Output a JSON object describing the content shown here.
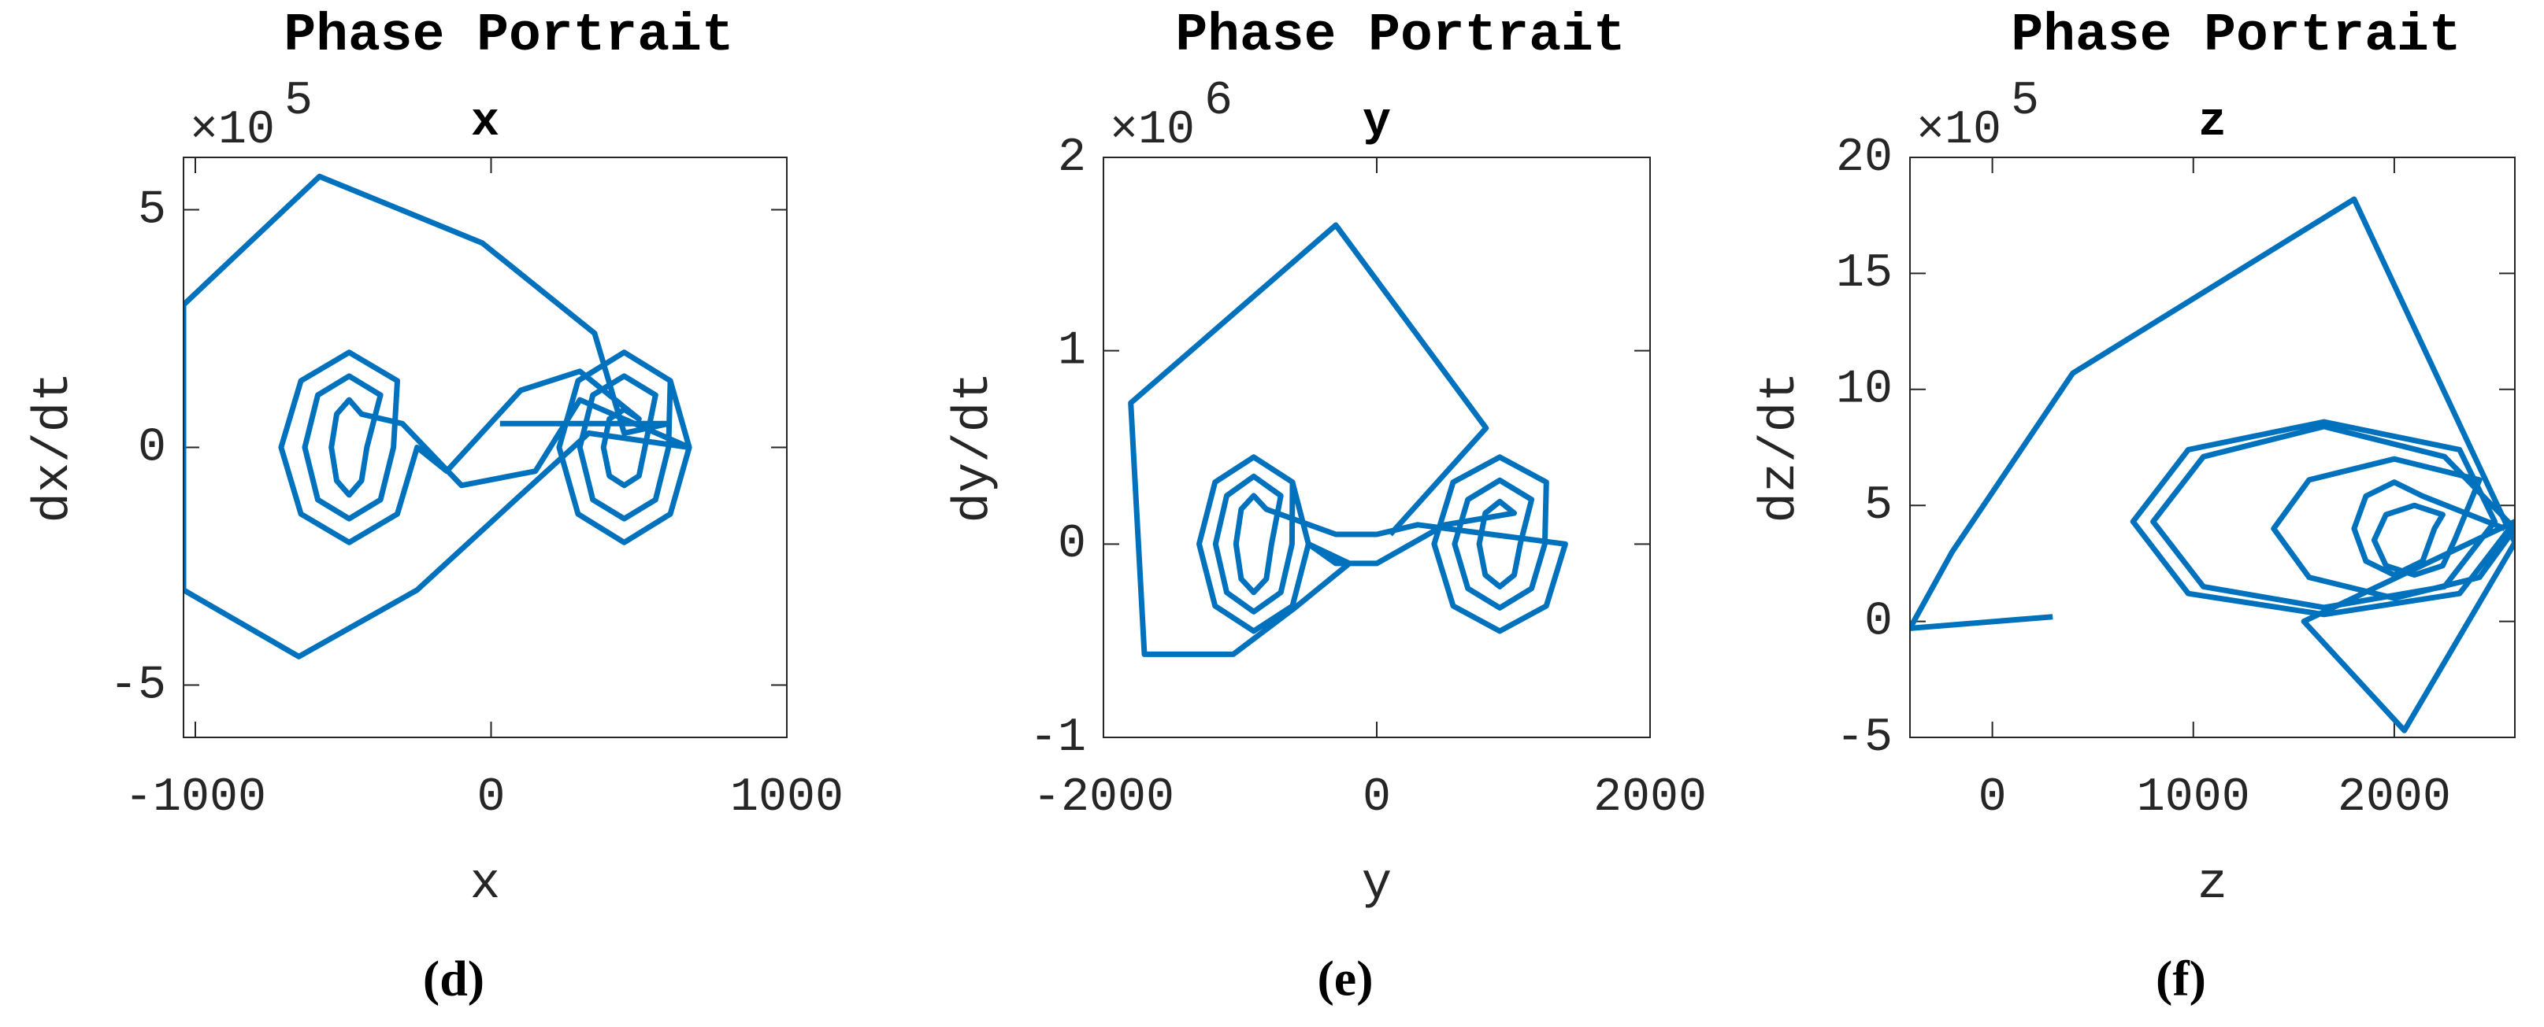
{
  "chart_data": [
    {
      "type": "line",
      "title": "Phase Portrait",
      "subtitle": "x",
      "xlabel": "x",
      "ylabel": "dx/dt",
      "y_scale_base": "×10",
      "y_scale_exponent": "5",
      "caption": "(d)",
      "color": "#0072BD",
      "xlim": [
        -1040,
        1000
      ],
      "ylim": [
        -6.1,
        6.1
      ],
      "xticks": [
        -1000,
        0,
        1000
      ],
      "yticks": [
        -5,
        0,
        5
      ],
      "x": [
        30,
        600,
        450,
        350,
        -30,
        -580,
        -1040,
        -1040,
        -650,
        -250,
        100,
        330,
        670,
        606,
        450,
        294,
        230,
        294,
        450,
        606,
        600,
        556,
        450,
        344,
        300,
        344,
        450,
        556,
        520,
        500,
        450,
        400,
        380,
        400,
        450,
        500,
        300,
        100,
        -150,
        -250,
        -317,
        -480,
        -643,
        -710,
        -643,
        -480,
        -317,
        -330,
        -374,
        -480,
        -586,
        -630,
        -586,
        -480,
        -374,
        -420,
        -438,
        -480,
        -522,
        -540,
        -522,
        -480,
        -438,
        -300,
        -100,
        150,
        300,
        670,
        606,
        450,
        294,
        230,
        294,
        450,
        606,
        670
      ],
      "values": [
        0.5,
        0.5,
        0.3,
        2.4,
        4.3,
        5.7,
        3,
        -3,
        -4.4,
        -3,
        -1,
        0.3,
        0,
        -1.4,
        -2,
        -1.4,
        0,
        1.4,
        2,
        1.4,
        0,
        -1.1,
        -1.5,
        -1.1,
        0,
        1.1,
        1.5,
        1.1,
        0,
        -0.6,
        -0.8,
        -0.6,
        0,
        0.6,
        0.8,
        0.6,
        1.6,
        1.2,
        -0.5,
        0,
        -1.4,
        -2,
        -1.4,
        0,
        1.4,
        2,
        1.4,
        0,
        -1.1,
        -1.5,
        -1.1,
        0,
        1.1,
        1.5,
        1.1,
        0,
        -0.7,
        -1,
        -0.7,
        0,
        0.7,
        1,
        0.7,
        0.5,
        -0.8,
        -0.5,
        1,
        0,
        -1.4,
        -2,
        -1.4,
        0,
        1.4,
        2,
        1.4,
        0
      ]
    },
    {
      "type": "line",
      "title": "Phase Portrait",
      "subtitle": "y",
      "xlabel": "y",
      "ylabel": "dy/dt",
      "y_scale_base": "×10",
      "y_scale_exponent": "6",
      "caption": "(e)",
      "color": "#0072BD",
      "xlim": [
        -2000,
        2000
      ],
      "ylim": [
        -1,
        2
      ],
      "xticks": [
        -2000,
        0,
        2000
      ],
      "yticks": [
        -1,
        0,
        1,
        2
      ],
      "x": [
        100,
        800,
        -300,
        -1800,
        -1700,
        -1050,
        -600,
        -200,
        -500,
        -617,
        -900,
        -1183,
        -1300,
        -1183,
        -900,
        -617,
        -620,
        -702,
        -900,
        -1098,
        -1180,
        -1098,
        -900,
        -702,
        -770,
        -808,
        -900,
        -992,
        -1030,
        -992,
        -900,
        -808,
        -300,
        0,
        300,
        1380,
        1241,
        900,
        559,
        420,
        559,
        900,
        1241,
        1230,
        1133,
        900,
        667,
        570,
        667,
        900,
        1133,
        1050,
        1006,
        900,
        794,
        750,
        794,
        900,
        1006,
        500,
        0,
        -300,
        -500,
        -617,
        -900,
        -1183,
        -1300,
        -1183,
        -900,
        -617,
        -500
      ],
      "values": [
        0.05,
        0.6,
        1.65,
        0.73,
        -0.57,
        -0.57,
        -0.33,
        -0.1,
        0,
        -0.32,
        -0.45,
        -0.32,
        0,
        0.32,
        0.45,
        0.32,
        0,
        -0.25,
        -0.35,
        -0.25,
        0,
        0.25,
        0.35,
        0.25,
        0,
        -0.18,
        -0.25,
        -0.18,
        0,
        0.18,
        0.25,
        0.18,
        0.05,
        0.05,
        0.1,
        0,
        -0.32,
        -0.45,
        -0.32,
        0,
        0.32,
        0.45,
        0.32,
        0,
        -0.23,
        -0.33,
        -0.23,
        0,
        0.23,
        0.33,
        0.23,
        0,
        -0.16,
        -0.22,
        -0.16,
        0,
        0.16,
        0.22,
        0.16,
        0.1,
        -0.1,
        -0.1,
        0,
        -0.32,
        -0.45,
        -0.32,
        0,
        0.32,
        0.45,
        0.32,
        0
      ]
    },
    {
      "type": "line",
      "title": "Phase Portrait",
      "subtitle": "z",
      "xlabel": "z",
      "ylabel": "dz/dt",
      "y_scale_base": "×10",
      "y_scale_exponent": "5",
      "caption": "(f)",
      "color": "#0072BD",
      "xlim": [
        -410,
        2600
      ],
      "ylim": [
        -5,
        20
      ],
      "xticks": [
        0,
        1000,
        2000
      ],
      "yticks": [
        -5,
        0,
        5,
        10,
        15,
        20
      ],
      "x": [
        300,
        -410,
        -200,
        400,
        1800,
        2600,
        2050,
        1550,
        2600,
        2325,
        1650,
        975,
        700,
        975,
        1650,
        2325,
        2500,
        2250,
        1650,
        1050,
        800,
        1050,
        1650,
        2250,
        2600,
        2424,
        2000,
        1576,
        1400,
        1576,
        2000,
        2424,
        2300,
        2241,
        2100,
        1959,
        1900,
        1959,
        2100,
        2241,
        2200,
        2141,
        2000,
        1859,
        1800,
        1859,
        2000,
        2141,
        2550
      ],
      "values": [
        0.2,
        -0.3,
        3,
        10.7,
        18.2,
        3.4,
        -4.7,
        0,
        4.3,
        1.2,
        0.3,
        1.2,
        4.3,
        7.4,
        8.6,
        7.4,
        4.3,
        1.5,
        0.6,
        1.5,
        4.3,
        7.1,
        8.4,
        7.1,
        4,
        1.9,
        1,
        1.9,
        4,
        6.1,
        7,
        6.1,
        3.5,
        2.4,
        2,
        2.4,
        3.5,
        4.6,
        5,
        4.6,
        4,
        2.6,
        2,
        2.6,
        4,
        5.4,
        6,
        5.4,
        4
      ]
    }
  ]
}
